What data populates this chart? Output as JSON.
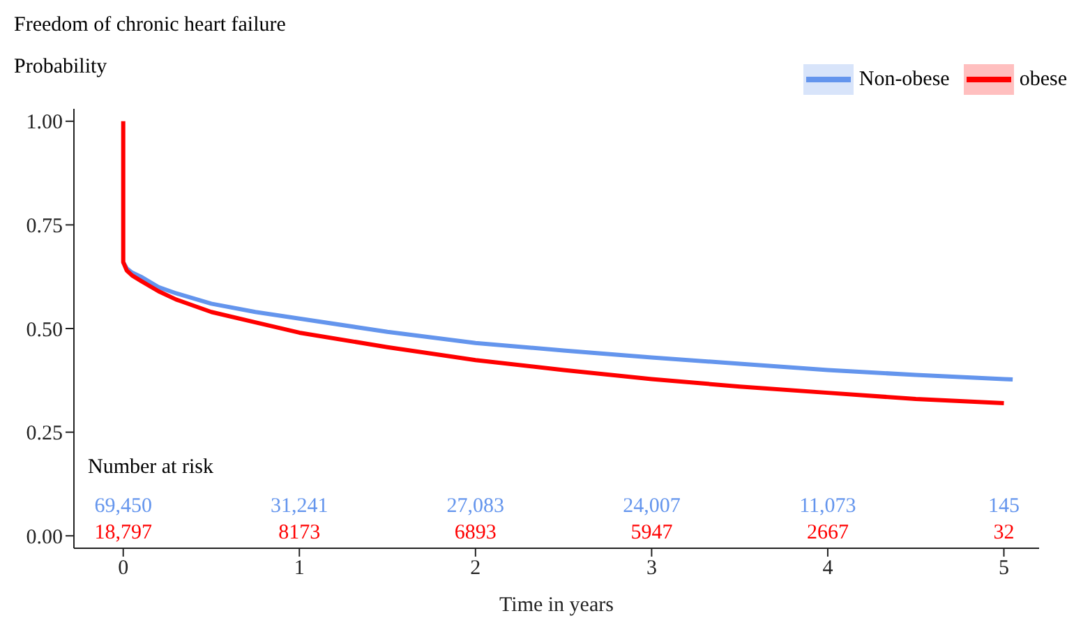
{
  "chart_data": {
    "type": "line",
    "title": "Freedom of chronic heart failure",
    "ylabel": "Probability",
    "xlabel": "Time in years",
    "xlim": [
      -0.28,
      5.2
    ],
    "xticks": [
      0,
      1,
      2,
      3,
      4,
      5
    ],
    "ylim": [
      -0.03,
      1.03
    ],
    "yticks": [
      {
        "value": 0,
        "label": "0.00"
      },
      0.25,
      {
        "value": 0.5,
        "label": "0.50"
      },
      0.75,
      {
        "value": 1,
        "label": "1.00"
      }
    ],
    "grid": false,
    "legend": "top right",
    "marker": "none",
    "line_style": "solid",
    "series": [
      {
        "name": "Non-obese",
        "color": "#6495ed",
        "x": [
          0,
          0.02,
          0.05,
          0.1,
          0.2,
          0.3,
          0.5,
          0.75,
          1,
          1.5,
          2,
          2.5,
          3,
          3.5,
          4,
          4.5,
          5,
          5.05
        ],
        "values": [
          0.66,
          0.645,
          0.635,
          0.625,
          0.6,
          0.585,
          0.56,
          0.54,
          0.524,
          0.492,
          0.465,
          0.447,
          0.43,
          0.415,
          0.4,
          0.388,
          0.378,
          0.377
        ]
      },
      {
        "name": "obese",
        "color": "#ff0000",
        "x": [
          0,
          0,
          0.02,
          0.05,
          0.1,
          0.2,
          0.3,
          0.5,
          0.75,
          1,
          1.5,
          2,
          2.5,
          3,
          3.5,
          4,
          4.5,
          5
        ],
        "values": [
          1,
          0.66,
          0.64,
          0.628,
          0.615,
          0.59,
          0.57,
          0.54,
          0.515,
          0.49,
          0.455,
          0.424,
          0.4,
          0.378,
          0.36,
          0.345,
          0.33,
          0.32
        ]
      }
    ],
    "annotations": [
      "Number at risk",
      "69,450",
      "31,241",
      "27,083",
      "24,007",
      "11,073",
      "145",
      "18,797",
      "8173",
      "6893",
      "5947",
      "2667",
      "32"
    ]
  }
}
